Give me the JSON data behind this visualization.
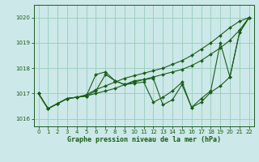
{
  "title": "Graphe pression niveau de la mer (hPa)",
  "bg_color": "#cce8e8",
  "grid_color": "#99ccbb",
  "line_color": "#1a5c1a",
  "xlim": [
    -0.5,
    22.5
  ],
  "ylim": [
    1015.7,
    1020.5
  ],
  "yticks": [
    1016,
    1017,
    1018,
    1019,
    1020
  ],
  "xticks": [
    0,
    1,
    2,
    3,
    4,
    5,
    6,
    7,
    8,
    9,
    10,
    11,
    12,
    13,
    14,
    15,
    16,
    17,
    18,
    19,
    20,
    21,
    22
  ],
  "series_smooth": [
    1017.0,
    1016.4,
    1016.6,
    1016.8,
    1016.85,
    1016.9,
    1017.0,
    1017.1,
    1017.2,
    1017.35,
    1017.45,
    1017.55,
    1017.65,
    1017.75,
    1017.85,
    1017.95,
    1018.1,
    1018.3,
    1018.55,
    1018.8,
    1019.1,
    1019.5,
    1020.0
  ],
  "series_wavy1": [
    1017.0,
    1016.4,
    1016.6,
    1016.8,
    1016.85,
    1016.9,
    1017.1,
    1017.75,
    1017.5,
    1017.35,
    1017.5,
    1017.55,
    1017.6,
    1016.55,
    1016.75,
    1017.35,
    1016.45,
    1016.65,
    1017.05,
    1017.3,
    1017.65,
    1019.4,
    1020.0
  ],
  "series_wavy2": [
    1017.0,
    1016.4,
    1016.6,
    1016.8,
    1016.85,
    1016.9,
    1017.75,
    1017.85,
    1017.5,
    1017.35,
    1017.4,
    1017.45,
    1016.65,
    1016.85,
    1017.1,
    1017.45,
    1016.45,
    1016.8,
    1017.1,
    1019.0,
    1017.65,
    1019.4,
    1020.0
  ],
  "series_top": [
    1017.0,
    1016.4,
    1016.6,
    1016.8,
    1016.85,
    1016.95,
    1017.15,
    1017.3,
    1017.45,
    1017.6,
    1017.7,
    1017.8,
    1017.9,
    1018.0,
    1018.15,
    1018.3,
    1018.5,
    1018.75,
    1019.0,
    1019.3,
    1019.6,
    1019.85,
    1020.0
  ]
}
